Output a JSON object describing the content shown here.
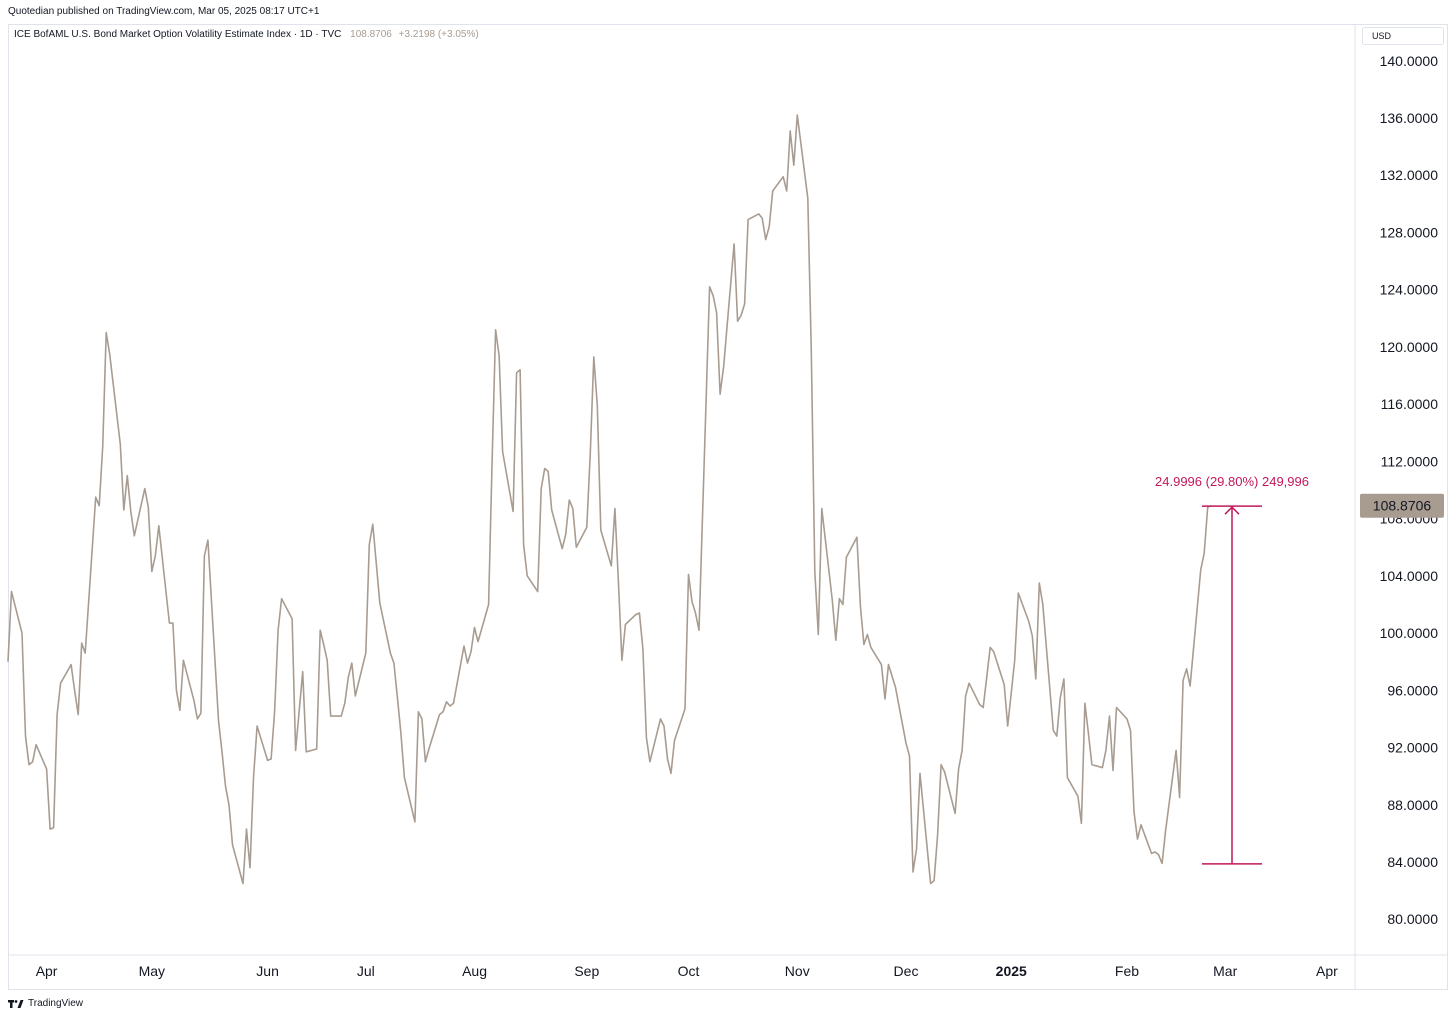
{
  "header": {
    "publisher_text": "Quotedian published on TradingView.com, Mar 05, 2025 08:17 UTC+1"
  },
  "legend": {
    "symbol_text": "ICE BofAML U.S. Bond Market Option Volatility Estimate Index · 1D · TVC",
    "last_value": "108.8706",
    "change": "+3.2198 (+3.05%)"
  },
  "currency_label": "USD",
  "price_tag": "108.8706",
  "measure": {
    "label": "24.9996 (29.80%) 249,996",
    "from_value": 83.87,
    "to_value": 108.87,
    "color": "#c2185b"
  },
  "footer": {
    "brand": "TradingView"
  },
  "colors": {
    "line": "#a89c91",
    "price_tag_bg": "#a89c91",
    "axis_text": "#131722"
  },
  "chart_data": {
    "type": "line",
    "title": "",
    "xlabel": "",
    "ylabel": "",
    "ylim": [
      77.5,
      142.5
    ],
    "y_ticks": [
      140,
      136,
      132,
      128,
      124,
      120,
      116,
      112,
      108,
      104,
      100,
      96,
      92,
      88,
      84,
      80
    ],
    "y_tick_labels": [
      "140.0000",
      "136.0000",
      "132.0000",
      "128.0000",
      "124.0000",
      "120.0000",
      "116.0000",
      "112.0000",
      "108.0000",
      "104.0000",
      "100.0000",
      "96.0000",
      "92.0000",
      "88.0000",
      "84.0000",
      "80.0000"
    ],
    "x_ticks": [
      {
        "label": "Apr",
        "x": "2024-04-01",
        "bold": false
      },
      {
        "label": "May",
        "x": "2024-05-01",
        "bold": false
      },
      {
        "label": "Jun",
        "x": "2024-06-03",
        "bold": false
      },
      {
        "label": "Jul",
        "x": "2024-07-01",
        "bold": false
      },
      {
        "label": "Aug",
        "x": "2024-08-01",
        "bold": false
      },
      {
        "label": "Sep",
        "x": "2024-09-02",
        "bold": false
      },
      {
        "label": "Oct",
        "x": "2024-10-01",
        "bold": false
      },
      {
        "label": "Nov",
        "x": "2024-11-01",
        "bold": false
      },
      {
        "label": "Dec",
        "x": "2024-12-02",
        "bold": false
      },
      {
        "label": "2025",
        "x": "2025-01-01",
        "bold": true
      },
      {
        "label": "Feb",
        "x": "2025-02-03",
        "bold": false
      },
      {
        "label": "Mar",
        "x": "2025-03-03",
        "bold": false
      },
      {
        "label": "Apr",
        "x": "2025-04-01",
        "bold": false
      }
    ],
    "x_range": [
      "2024-03-21",
      "2025-04-09"
    ],
    "series": [
      {
        "name": "",
        "points": [
          [
            "2024-03-21",
            98.0
          ],
          [
            "2024-03-22",
            102.9
          ],
          [
            "2024-03-25",
            100.0
          ],
          [
            "2024-03-26",
            92.8
          ],
          [
            "2024-03-27",
            90.8
          ],
          [
            "2024-03-28",
            91.0
          ],
          [
            "2024-03-29",
            92.2
          ],
          [
            "2024-04-01",
            90.5
          ],
          [
            "2024-04-02",
            86.3
          ],
          [
            "2024-04-03",
            86.4
          ],
          [
            "2024-04-04",
            94.3
          ],
          [
            "2024-04-05",
            96.5
          ],
          [
            "2024-04-08",
            97.8
          ],
          [
            "2024-04-09",
            96.0
          ],
          [
            "2024-04-10",
            94.3
          ],
          [
            "2024-04-11",
            99.3
          ],
          [
            "2024-04-12",
            98.6
          ],
          [
            "2024-04-15",
            109.5
          ],
          [
            "2024-04-16",
            108.9
          ],
          [
            "2024-04-17",
            113.0
          ],
          [
            "2024-04-18",
            121.0
          ],
          [
            "2024-04-19",
            119.5
          ],
          [
            "2024-04-22",
            113.2
          ],
          [
            "2024-04-23",
            108.6
          ],
          [
            "2024-04-24",
            111.0
          ],
          [
            "2024-04-25",
            108.5
          ],
          [
            "2024-04-26",
            106.8
          ],
          [
            "2024-04-29",
            110.1
          ],
          [
            "2024-04-30",
            108.8
          ],
          [
            "2024-05-01",
            104.3
          ],
          [
            "2024-05-02",
            105.4
          ],
          [
            "2024-05-03",
            107.5
          ],
          [
            "2024-05-06",
            100.7
          ],
          [
            "2024-05-07",
            100.7
          ],
          [
            "2024-05-08",
            96.0
          ],
          [
            "2024-05-09",
            94.6
          ],
          [
            "2024-05-10",
            98.1
          ],
          [
            "2024-05-13",
            95.3
          ],
          [
            "2024-05-14",
            94.0
          ],
          [
            "2024-05-15",
            94.4
          ],
          [
            "2024-05-16",
            105.4
          ],
          [
            "2024-05-17",
            106.5
          ],
          [
            "2024-05-20",
            93.9
          ],
          [
            "2024-05-21",
            91.7
          ],
          [
            "2024-05-22",
            89.3
          ],
          [
            "2024-05-23",
            88.0
          ],
          [
            "2024-05-24",
            85.2
          ],
          [
            "2024-05-27",
            82.5
          ],
          [
            "2024-05-28",
            86.3
          ],
          [
            "2024-05-29",
            83.6
          ],
          [
            "2024-05-30",
            89.9
          ],
          [
            "2024-05-31",
            93.5
          ],
          [
            "2024-06-03",
            91.1
          ],
          [
            "2024-06-04",
            91.2
          ],
          [
            "2024-06-05",
            94.5
          ],
          [
            "2024-06-06",
            100.2
          ],
          [
            "2024-06-07",
            102.4
          ],
          [
            "2024-06-10",
            101.0
          ],
          [
            "2024-06-11",
            91.8
          ],
          [
            "2024-06-12",
            94.5
          ],
          [
            "2024-06-13",
            97.3
          ],
          [
            "2024-06-14",
            91.7
          ],
          [
            "2024-06-17",
            91.9
          ],
          [
            "2024-06-18",
            100.2
          ],
          [
            "2024-06-19",
            99.2
          ],
          [
            "2024-06-20",
            98.1
          ],
          [
            "2024-06-21",
            94.2
          ],
          [
            "2024-06-24",
            94.2
          ],
          [
            "2024-06-25",
            95.1
          ],
          [
            "2024-06-26",
            96.9
          ],
          [
            "2024-06-27",
            97.9
          ],
          [
            "2024-06-28",
            95.6
          ],
          [
            "2024-07-01",
            98.6
          ],
          [
            "2024-07-02",
            106.2
          ],
          [
            "2024-07-03",
            107.6
          ],
          [
            "2024-07-05",
            102.1
          ],
          [
            "2024-07-08",
            98.6
          ],
          [
            "2024-07-09",
            97.9
          ],
          [
            "2024-07-10",
            95.5
          ],
          [
            "2024-07-11",
            93.0
          ],
          [
            "2024-07-12",
            89.9
          ],
          [
            "2024-07-15",
            86.8
          ],
          [
            "2024-07-16",
            94.5
          ],
          [
            "2024-07-17",
            94.0
          ],
          [
            "2024-07-18",
            91.0
          ],
          [
            "2024-07-19",
            91.9
          ],
          [
            "2024-07-22",
            94.3
          ],
          [
            "2024-07-23",
            94.5
          ],
          [
            "2024-07-24",
            95.2
          ],
          [
            "2024-07-25",
            94.9
          ],
          [
            "2024-07-26",
            95.1
          ],
          [
            "2024-07-29",
            99.1
          ],
          [
            "2024-07-30",
            97.9
          ],
          [
            "2024-07-31",
            98.7
          ],
          [
            "2024-08-01",
            100.4
          ],
          [
            "2024-08-02",
            99.4
          ],
          [
            "2024-08-05",
            102.0
          ],
          [
            "2024-08-06",
            112.0
          ],
          [
            "2024-08-07",
            121.2
          ],
          [
            "2024-08-08",
            119.4
          ],
          [
            "2024-08-09",
            112.7
          ],
          [
            "2024-08-12",
            108.5
          ],
          [
            "2024-08-13",
            118.2
          ],
          [
            "2024-08-14",
            118.4
          ],
          [
            "2024-08-15",
            106.2
          ],
          [
            "2024-08-16",
            104.0
          ],
          [
            "2024-08-19",
            102.9
          ],
          [
            "2024-08-20",
            110.1
          ],
          [
            "2024-08-21",
            111.5
          ],
          [
            "2024-08-22",
            111.3
          ],
          [
            "2024-08-23",
            108.6
          ],
          [
            "2024-08-26",
            105.9
          ],
          [
            "2024-08-27",
            106.9
          ],
          [
            "2024-08-28",
            109.3
          ],
          [
            "2024-08-29",
            108.7
          ],
          [
            "2024-08-30",
            106.0
          ],
          [
            "2024-09-02",
            107.4
          ],
          [
            "2024-09-03",
            112.6
          ],
          [
            "2024-09-04",
            119.3
          ],
          [
            "2024-09-05",
            115.9
          ],
          [
            "2024-09-06",
            107.2
          ],
          [
            "2024-09-09",
            104.7
          ],
          [
            "2024-09-10",
            108.7
          ],
          [
            "2024-09-11",
            103.6
          ],
          [
            "2024-09-12",
            98.1
          ],
          [
            "2024-09-13",
            100.6
          ],
          [
            "2024-09-16",
            101.3
          ],
          [
            "2024-09-17",
            101.4
          ],
          [
            "2024-09-18",
            98.9
          ],
          [
            "2024-09-19",
            92.7
          ],
          [
            "2024-09-20",
            91.0
          ],
          [
            "2024-09-23",
            94.0
          ],
          [
            "2024-09-24",
            93.5
          ],
          [
            "2024-09-25",
            91.2
          ],
          [
            "2024-09-26",
            90.2
          ],
          [
            "2024-09-27",
            92.5
          ],
          [
            "2024-09-30",
            94.7
          ],
          [
            "2024-10-01",
            104.1
          ],
          [
            "2024-10-02",
            102.2
          ],
          [
            "2024-10-03",
            101.4
          ],
          [
            "2024-10-04",
            100.2
          ],
          [
            "2024-10-07",
            124.2
          ],
          [
            "2024-10-08",
            123.6
          ],
          [
            "2024-10-09",
            122.4
          ],
          [
            "2024-10-10",
            116.7
          ],
          [
            "2024-10-11",
            118.6
          ],
          [
            "2024-10-14",
            127.2
          ],
          [
            "2024-10-15",
            121.8
          ],
          [
            "2024-10-16",
            122.2
          ],
          [
            "2024-10-17",
            123.0
          ],
          [
            "2024-10-18",
            128.9
          ],
          [
            "2024-10-21",
            129.3
          ],
          [
            "2024-10-22",
            129.0
          ],
          [
            "2024-10-23",
            127.5
          ],
          [
            "2024-10-24",
            128.4
          ],
          [
            "2024-10-25",
            130.9
          ],
          [
            "2024-10-28",
            131.9
          ],
          [
            "2024-10-29",
            130.9
          ],
          [
            "2024-10-30",
            135.1
          ],
          [
            "2024-10-31",
            132.7
          ],
          [
            "2024-11-01",
            136.2
          ],
          [
            "2024-11-04",
            130.4
          ],
          [
            "2024-11-05",
            119.7
          ],
          [
            "2024-11-06",
            104.3
          ],
          [
            "2024-11-07",
            99.9
          ],
          [
            "2024-11-08",
            108.7
          ],
          [
            "2024-11-11",
            102.3
          ],
          [
            "2024-11-12",
            99.5
          ],
          [
            "2024-11-13",
            102.4
          ],
          [
            "2024-11-14",
            102.0
          ],
          [
            "2024-11-15",
            105.3
          ],
          [
            "2024-11-18",
            106.7
          ],
          [
            "2024-11-19",
            101.9
          ],
          [
            "2024-11-20",
            99.2
          ],
          [
            "2024-11-21",
            99.9
          ],
          [
            "2024-11-22",
            99.0
          ],
          [
            "2024-11-25",
            97.8
          ],
          [
            "2024-11-26",
            95.4
          ],
          [
            "2024-11-27",
            97.8
          ],
          [
            "2024-11-29",
            96.2
          ],
          [
            "2024-12-02",
            92.3
          ],
          [
            "2024-12-03",
            91.4
          ],
          [
            "2024-12-04",
            83.3
          ],
          [
            "2024-12-05",
            84.9
          ],
          [
            "2024-12-06",
            90.2
          ],
          [
            "2024-12-09",
            82.5
          ],
          [
            "2024-12-10",
            82.7
          ],
          [
            "2024-12-11",
            85.9
          ],
          [
            "2024-12-12",
            90.8
          ],
          [
            "2024-12-13",
            90.3
          ],
          [
            "2024-12-16",
            87.4
          ],
          [
            "2024-12-17",
            90.5
          ],
          [
            "2024-12-18",
            91.8
          ],
          [
            "2024-12-19",
            95.6
          ],
          [
            "2024-12-20",
            96.5
          ],
          [
            "2024-12-23",
            95.0
          ],
          [
            "2024-12-24",
            94.8
          ],
          [
            "2024-12-26",
            99.0
          ],
          [
            "2024-12-27",
            98.7
          ],
          [
            "2024-12-30",
            96.4
          ],
          [
            "2024-12-31",
            93.5
          ],
          [
            "2025-01-02",
            98.1
          ],
          [
            "2025-01-03",
            102.8
          ],
          [
            "2025-01-06",
            100.8
          ],
          [
            "2025-01-07",
            99.8
          ],
          [
            "2025-01-08",
            96.8
          ],
          [
            "2025-01-09",
            103.5
          ],
          [
            "2025-01-10",
            102.0
          ],
          [
            "2025-01-13",
            93.2
          ],
          [
            "2025-01-14",
            92.8
          ],
          [
            "2025-01-15",
            95.5
          ],
          [
            "2025-01-16",
            96.8
          ],
          [
            "2025-01-17",
            89.9
          ],
          [
            "2025-01-20",
            88.6
          ],
          [
            "2025-01-21",
            86.7
          ],
          [
            "2025-01-22",
            95.1
          ],
          [
            "2025-01-23",
            93.0
          ],
          [
            "2025-01-24",
            90.8
          ],
          [
            "2025-01-27",
            90.6
          ],
          [
            "2025-01-28",
            91.8
          ],
          [
            "2025-01-29",
            94.2
          ],
          [
            "2025-01-30",
            90.4
          ],
          [
            "2025-01-31",
            94.8
          ],
          [
            "2025-02-03",
            94.0
          ],
          [
            "2025-02-04",
            93.2
          ],
          [
            "2025-02-05",
            87.5
          ],
          [
            "2025-02-06",
            85.6
          ],
          [
            "2025-02-07",
            86.6
          ],
          [
            "2025-02-10",
            84.6
          ],
          [
            "2025-02-11",
            84.7
          ],
          [
            "2025-02-12",
            84.5
          ],
          [
            "2025-02-13",
            83.9
          ],
          [
            "2025-02-14",
            86.2
          ],
          [
            "2025-02-17",
            91.8
          ],
          [
            "2025-02-18",
            88.5
          ],
          [
            "2025-02-19",
            96.7
          ],
          [
            "2025-02-20",
            97.5
          ],
          [
            "2025-02-21",
            96.3
          ],
          [
            "2025-02-24",
            104.4
          ],
          [
            "2025-02-25",
            105.6
          ],
          [
            "2025-02-26",
            108.8
          ],
          [
            "2025-02-27",
            108.9
          ]
        ]
      }
    ]
  }
}
